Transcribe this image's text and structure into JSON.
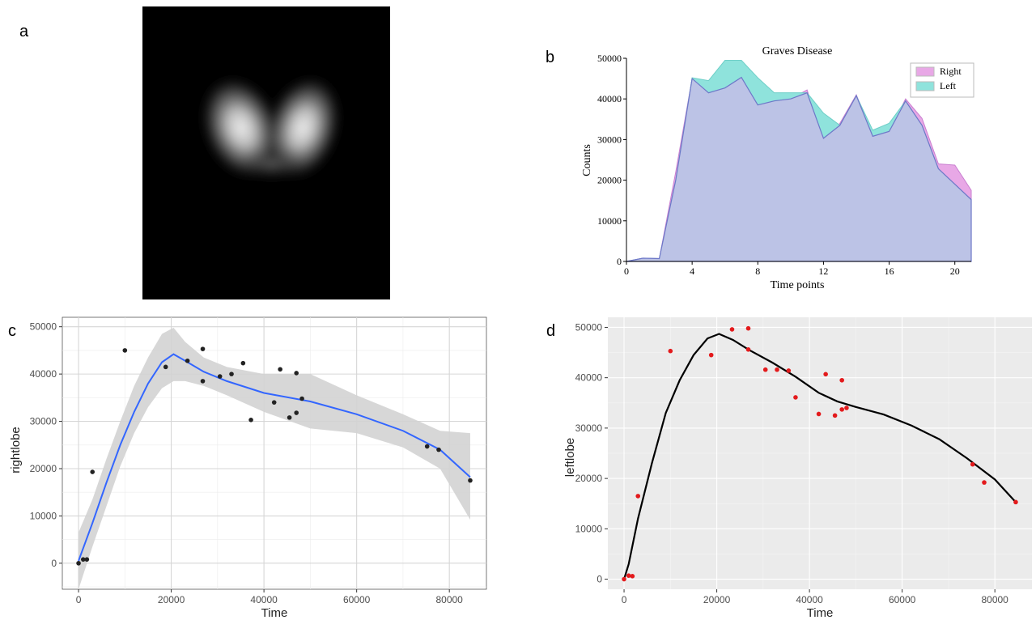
{
  "panels": {
    "a": "a",
    "b": "b",
    "c": "c",
    "d": "d"
  },
  "colors": {
    "right_fill": "#e8a8e6",
    "left_fill": "#8fe3dc",
    "overlap_fill": "#bcc3e6",
    "smooth_line": "#3366ff",
    "ribbon": "#d3d3d3",
    "points_c": "#222222",
    "points_d": "#e31a1c",
    "panel_bg_d": "#ebebeb"
  },
  "chart_data": [
    {
      "panel": "b",
      "type": "area",
      "title": "Graves Disease",
      "xlabel": "Time points",
      "ylabel": "Counts",
      "xlim": [
        0,
        21
      ],
      "ylim": [
        0,
        50000
      ],
      "xticks": [
        0,
        4,
        8,
        12,
        16,
        20
      ],
      "yticks": [
        0,
        10000,
        20000,
        30000,
        40000,
        50000
      ],
      "legend_position": "top-right",
      "x": [
        0,
        1,
        2,
        3,
        4,
        5,
        6,
        7,
        8,
        9,
        10,
        11,
        12,
        13,
        14,
        15,
        16,
        17,
        18,
        19,
        20,
        21
      ],
      "series": [
        {
          "name": "Right",
          "values": [
            0,
            800,
            700,
            22000,
            45000,
            41500,
            42700,
            45300,
            38500,
            39500,
            40000,
            42200,
            30300,
            34000,
            41000,
            30800,
            32000,
            40000,
            35200,
            24000,
            23700,
            17500
          ]
        },
        {
          "name": "Left",
          "values": [
            0,
            800,
            700,
            20000,
            45200,
            44500,
            49500,
            49500,
            45200,
            41500,
            41500,
            41500,
            36500,
            33500,
            40800,
            32300,
            34000,
            39500,
            33500,
            22800,
            19000,
            15200
          ]
        }
      ]
    },
    {
      "panel": "c",
      "type": "scatter",
      "xlabel": "Time",
      "ylabel": "rightlobe",
      "xlim": [
        -3500,
        88000
      ],
      "ylim": [
        -5500,
        52000
      ],
      "xticks": [
        0,
        20000,
        40000,
        60000,
        80000
      ],
      "yticks": [
        0,
        10000,
        20000,
        30000,
        40000,
        50000
      ],
      "grid": true,
      "points": [
        [
          0,
          0
        ],
        [
          1000,
          800
        ],
        [
          1800,
          800
        ],
        [
          3000,
          19300
        ],
        [
          10000,
          45000
        ],
        [
          18800,
          41500
        ],
        [
          23500,
          42800
        ],
        [
          26800,
          45300
        ],
        [
          26800,
          38500
        ],
        [
          30500,
          39500
        ],
        [
          33000,
          40000
        ],
        [
          35500,
          42300
        ],
        [
          37200,
          30300
        ],
        [
          42200,
          34000
        ],
        [
          43500,
          41000
        ],
        [
          45500,
          30800
        ],
        [
          47000,
          31800
        ],
        [
          47000,
          40200
        ],
        [
          48200,
          34800
        ],
        [
          75200,
          24700
        ],
        [
          77700,
          24000
        ],
        [
          84500,
          17500
        ]
      ],
      "smooth": [
        [
          0,
          500
        ],
        [
          3000,
          8500
        ],
        [
          6000,
          17000
        ],
        [
          9000,
          25000
        ],
        [
          12000,
          32000
        ],
        [
          15000,
          38000
        ],
        [
          18000,
          42500
        ],
        [
          20500,
          44200
        ],
        [
          23000,
          42800
        ],
        [
          27000,
          40500
        ],
        [
          32000,
          38500
        ],
        [
          40000,
          36000
        ],
        [
          50000,
          34200
        ],
        [
          60000,
          31500
        ],
        [
          70000,
          28000
        ],
        [
          78000,
          24000
        ],
        [
          84500,
          18200
        ]
      ],
      "ribbon_upper": [
        [
          0,
          6500
        ],
        [
          3000,
          13500
        ],
        [
          6000,
          22000
        ],
        [
          9000,
          30000
        ],
        [
          12000,
          37500
        ],
        [
          15000,
          43500
        ],
        [
          18000,
          48500
        ],
        [
          20500,
          49800
        ],
        [
          23000,
          46800
        ],
        [
          27000,
          43500
        ],
        [
          32000,
          41500
        ],
        [
          40000,
          40000
        ],
        [
          50000,
          40000
        ],
        [
          60000,
          35500
        ],
        [
          70000,
          31500
        ],
        [
          78000,
          28000
        ],
        [
          84500,
          27500
        ]
      ],
      "ribbon_lower": [
        [
          0,
          -5500
        ],
        [
          3000,
          3500
        ],
        [
          6000,
          12000
        ],
        [
          9000,
          20500
        ],
        [
          12000,
          27500
        ],
        [
          15000,
          33000
        ],
        [
          18000,
          37000
        ],
        [
          20500,
          38500
        ],
        [
          23000,
          38500
        ],
        [
          27000,
          37500
        ],
        [
          32000,
          35500
        ],
        [
          40000,
          32000
        ],
        [
          50000,
          28500
        ],
        [
          60000,
          27500
        ],
        [
          70000,
          24500
        ],
        [
          78000,
          20000
        ],
        [
          84500,
          9200
        ]
      ]
    },
    {
      "panel": "d",
      "type": "scatter",
      "xlabel": "Time",
      "ylabel": "leftlobe",
      "xlim": [
        -3500,
        88000
      ],
      "ylim": [
        -2000,
        52000
      ],
      "xticks": [
        0,
        20000,
        40000,
        60000,
        80000
      ],
      "yticks": [
        0,
        10000,
        20000,
        30000,
        40000,
        50000
      ],
      "grid": true,
      "points": [
        [
          0,
          0
        ],
        [
          1000,
          700
        ],
        [
          1800,
          600
        ],
        [
          3000,
          16500
        ],
        [
          10000,
          45300
        ],
        [
          18800,
          44500
        ],
        [
          23300,
          49600
        ],
        [
          26800,
          49800
        ],
        [
          26800,
          45600
        ],
        [
          30500,
          41600
        ],
        [
          33000,
          41600
        ],
        [
          35500,
          41400
        ],
        [
          37000,
          36100
        ],
        [
          42000,
          32800
        ],
        [
          43500,
          40700
        ],
        [
          45500,
          32500
        ],
        [
          47000,
          39500
        ],
        [
          47000,
          33700
        ],
        [
          48000,
          34000
        ],
        [
          75200,
          22800
        ],
        [
          77700,
          19200
        ],
        [
          84500,
          15300
        ]
      ],
      "fit_line": [
        [
          0,
          0
        ],
        [
          1000,
          3000
        ],
        [
          3000,
          12000
        ],
        [
          6000,
          23000
        ],
        [
          9000,
          33000
        ],
        [
          12000,
          39500
        ],
        [
          15000,
          44500
        ],
        [
          18000,
          47800
        ],
        [
          20500,
          48700
        ],
        [
          23500,
          47500
        ],
        [
          27000,
          45500
        ],
        [
          32000,
          43000
        ],
        [
          37000,
          40200
        ],
        [
          42000,
          37000
        ],
        [
          46000,
          35300
        ],
        [
          50000,
          34200
        ],
        [
          56000,
          32700
        ],
        [
          62000,
          30500
        ],
        [
          68000,
          27800
        ],
        [
          74000,
          24000
        ],
        [
          80000,
          19800
        ],
        [
          84500,
          15300
        ]
      ]
    }
  ]
}
